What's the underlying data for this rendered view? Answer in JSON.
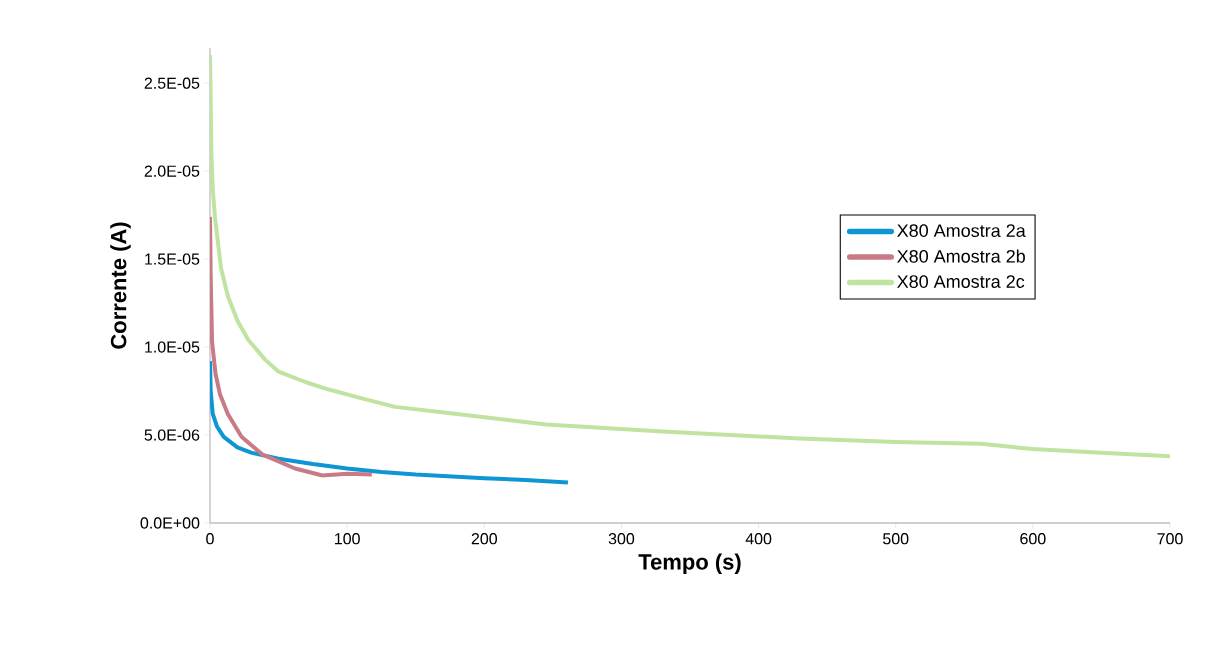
{
  "chart_data": {
    "type": "line",
    "xlabel": "Tempo (s)",
    "ylabel": "Corrente (A)",
    "xlim": [
      0,
      700
    ],
    "xticks": [
      0,
      100,
      200,
      300,
      400,
      500,
      600,
      700
    ],
    "ylim": [
      0,
      2.7e-05
    ],
    "yticks": [
      {
        "value": 0,
        "label": "0.0E+00"
      },
      {
        "value": 5e-06,
        "label": "5.0E-06"
      },
      {
        "value": 1e-05,
        "label": "1.0E-05"
      },
      {
        "value": 1.5e-05,
        "label": "1.5E-05"
      },
      {
        "value": 2e-05,
        "label": "2.0E-05"
      },
      {
        "value": 2.5e-05,
        "label": "2.5E-05"
      }
    ],
    "grid": false,
    "legend": "right",
    "marker": "none",
    "line_style": "solid",
    "series": [
      {
        "name": "X80 Amostra 2a",
        "color": "#0e96d4",
        "x": [
          0,
          0.5,
          2,
          5,
          10,
          20,
          30,
          50,
          75,
          100,
          125,
          150,
          200,
          230,
          261
        ],
        "values": [
          9.2e-06,
          7.5e-06,
          6.2e-06,
          5.5e-06,
          4.9e-06,
          4.3e-06,
          4e-06,
          3.65e-06,
          3.35e-06,
          3.1e-06,
          2.9e-06,
          2.75e-06,
          2.55e-06,
          2.45e-06,
          2.3e-06
        ]
      },
      {
        "name": "X80 Amostra 2b",
        "color": "#c87a85",
        "x": [
          0,
          0.5,
          1.5,
          4,
          7.3,
          13,
          23,
          38,
          62,
          82,
          100,
          118
        ],
        "values": [
          1.74e-05,
          1.4e-05,
          1.03e-05,
          8.5e-06,
          7.3e-06,
          6.2e-06,
          4.9e-06,
          3.9e-06,
          3.1e-06,
          2.7e-06,
          2.8e-06,
          2.75e-06
        ]
      },
      {
        "name": "X80 Amostra 2c",
        "color": "#bfe3a0",
        "x": [
          0,
          0.5,
          1,
          2,
          3.6,
          8,
          13,
          20,
          28,
          40,
          50,
          70,
          86,
          110,
          135,
          180,
          245,
          330,
          430,
          500,
          562,
          600,
          650,
          700
        ],
        "values": [
          2.66e-05,
          2.4e-05,
          2.1e-05,
          1.9e-05,
          1.74e-05,
          1.45e-05,
          1.29e-05,
          1.15e-05,
          1.04e-05,
          9.3e-06,
          8.6e-06,
          8e-06,
          7.6e-06,
          7.1e-06,
          6.6e-06,
          6.2e-06,
          5.6e-06,
          5.2e-06,
          4.8e-06,
          4.6e-06,
          4.5e-06,
          4.2e-06,
          4e-06,
          3.8e-06
        ]
      }
    ]
  }
}
